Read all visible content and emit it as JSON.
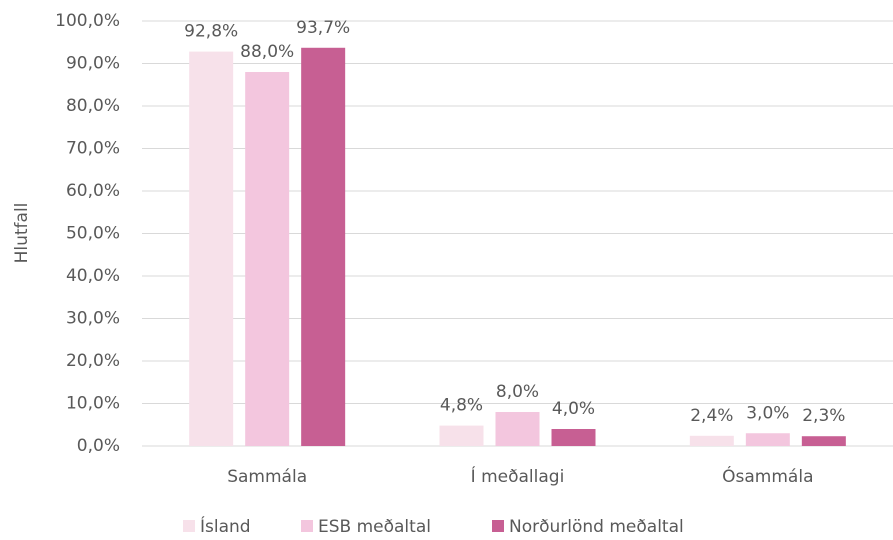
{
  "chart_data": {
    "type": "bar",
    "ylabel": "Hlutfall",
    "categories": [
      "Sammála",
      "Í meðallagi",
      "Ósammála"
    ],
    "series": [
      {
        "name": "Ísland",
        "color": "#f7e1ea",
        "values": [
          92.8,
          4.8,
          2.4
        ],
        "value_labels": [
          "92,8%",
          "4,8%",
          "2,4%"
        ]
      },
      {
        "name": "ESB meðaltal",
        "color": "#f3c6de",
        "values": [
          88.0,
          8.0,
          3.0
        ],
        "value_labels": [
          "88,0%",
          "8,0%",
          "3,0%"
        ]
      },
      {
        "name": "Norðurlönd meðaltal",
        "color": "#c75f93",
        "values": [
          93.7,
          4.0,
          2.3
        ],
        "value_labels": [
          "93,7%",
          "4,0%",
          "2,3%"
        ]
      }
    ],
    "ylim": [
      0,
      100
    ],
    "yticks": [
      {
        "value": 0,
        "label": "0,0%"
      },
      {
        "value": 10,
        "label": "10,0%"
      },
      {
        "value": 20,
        "label": "20,0%"
      },
      {
        "value": 30,
        "label": "30,0%"
      },
      {
        "value": 40,
        "label": "40,0%"
      },
      {
        "value": 50,
        "label": "50,0%"
      },
      {
        "value": 60,
        "label": "60,0%"
      },
      {
        "value": 70,
        "label": "70,0%"
      },
      {
        "value": 80,
        "label": "80,0%"
      },
      {
        "value": 90,
        "label": "90,0%"
      },
      {
        "value": 100,
        "label": "100,0%"
      }
    ],
    "grid": true,
    "legend": "bottom"
  }
}
